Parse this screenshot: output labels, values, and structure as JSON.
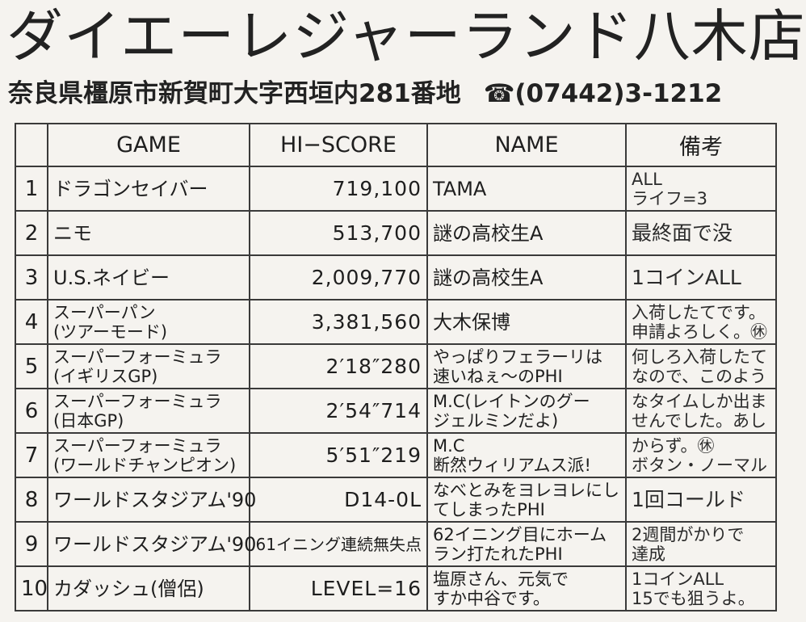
{
  "header": {
    "title": "ダイエーレジャーランド八木店",
    "address": "奈良県橿原市新賀町大字西垣内281番地",
    "phone": "☎(07442)3-1212"
  },
  "table": {
    "columns": [
      "",
      "GAME",
      "HI−SCORE",
      "NAME",
      "備考"
    ],
    "rows": [
      {
        "rank": "1",
        "game": [
          "ドラゴンセイバー"
        ],
        "score": "719,100",
        "name": [
          "TAMA"
        ],
        "note": [
          "ALL",
          "ライフ=3"
        ]
      },
      {
        "rank": "2",
        "game": [
          "ニモ"
        ],
        "score": "513,700",
        "name": [
          "謎の高校生A"
        ],
        "note": [
          "最終面で没"
        ]
      },
      {
        "rank": "3",
        "game": [
          "U.S.ネイビー"
        ],
        "score": "2,009,770",
        "name": [
          "謎の高校生A"
        ],
        "note": [
          "1コインALL"
        ]
      },
      {
        "rank": "4",
        "game": [
          "スーパーパン",
          "(ツアーモード)"
        ],
        "score": "3,381,560",
        "name": [
          "大木保博"
        ],
        "note": [
          "入荷したてです。",
          "申請よろしく。㊡"
        ]
      },
      {
        "rank": "5",
        "game": [
          "スーパーフォーミュラ",
          "(イギリスGP)"
        ],
        "score": "2′18″280",
        "name": [
          "やっぱりフェラーリは",
          "速いねぇ〜のPHI"
        ],
        "note": [
          "何しろ入荷したて",
          "なので、このよう"
        ]
      },
      {
        "rank": "6",
        "game": [
          "スーパーフォーミュラ",
          "(日本GP)"
        ],
        "score": "2′54″714",
        "name": [
          "M.C(レイトンのグー",
          "ジェルミンだよ)"
        ],
        "note": [
          "なタイムしか出ま",
          "せんでした。あし"
        ]
      },
      {
        "rank": "7",
        "game": [
          "スーパーフォーミュラ",
          "(ワールドチャンピオン)"
        ],
        "score": "5′51″219",
        "name": [
          "M.C",
          "断然ウィリアムス派!"
        ],
        "note": [
          "からず。㊡",
          "ボタン・ノーマル"
        ]
      },
      {
        "rank": "8",
        "game": [
          "ワールドスタジアム'90"
        ],
        "score": "D14-0L",
        "name": [
          "なべとみをヨレヨレにし",
          "てしまったPHI"
        ],
        "note": [
          "1回コールド"
        ]
      },
      {
        "rank": "9",
        "game": [
          "ワールドスタジアム'90"
        ],
        "score": "61イニング連続無失点",
        "name": [
          "62イニング目にホーム",
          "ラン打たれたPHI"
        ],
        "note": [
          "2週間がかりで",
          "達成"
        ]
      },
      {
        "rank": "10",
        "game": [
          "カダッシュ(僧侶)"
        ],
        "score": "LEVEL=16",
        "name": [
          "塩原さん、元気で",
          "すか中谷です。"
        ],
        "note": [
          "1コインALL",
          "15でも狙うよ。"
        ]
      }
    ]
  }
}
